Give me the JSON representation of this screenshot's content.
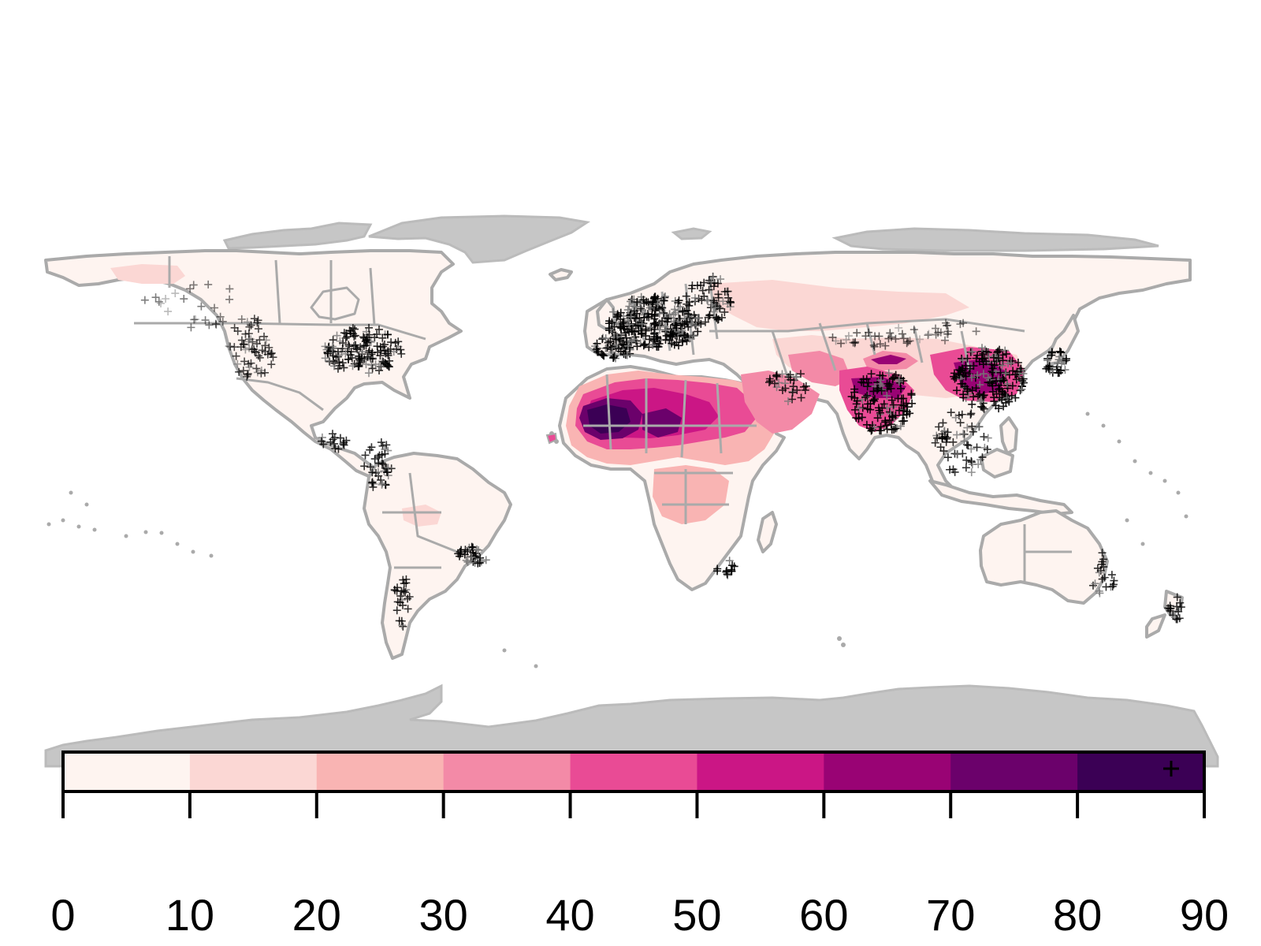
{
  "map": {
    "colors": {
      "land_gray": "#c6c6c6",
      "border_gray": "#aaaaaa",
      "marker": "#000000",
      "marker_light": "#777777",
      "background": "#ffffff"
    }
  },
  "legend": {
    "bins": [
      {
        "from": 0,
        "to": 10,
        "color": "#fef4f0"
      },
      {
        "from": 10,
        "to": 20,
        "color": "#fbd7d4"
      },
      {
        "from": 20,
        "to": 30,
        "color": "#f9b4b3"
      },
      {
        "from": 30,
        "to": 40,
        "color": "#f38aa7"
      },
      {
        "from": 40,
        "to": 50,
        "color": "#e94b95"
      },
      {
        "from": 50,
        "to": 60,
        "color": "#cb1685"
      },
      {
        "from": 60,
        "to": 70,
        "color": "#990374"
      },
      {
        "from": 70,
        "to": 80,
        "color": "#6b016b"
      },
      {
        "from": 80,
        "to": 90,
        "color": "#3b0055"
      }
    ],
    "ticks": [
      "0",
      "10",
      "20",
      "30",
      "40",
      "50",
      "60",
      "70",
      "80",
      "90"
    ]
  }
}
